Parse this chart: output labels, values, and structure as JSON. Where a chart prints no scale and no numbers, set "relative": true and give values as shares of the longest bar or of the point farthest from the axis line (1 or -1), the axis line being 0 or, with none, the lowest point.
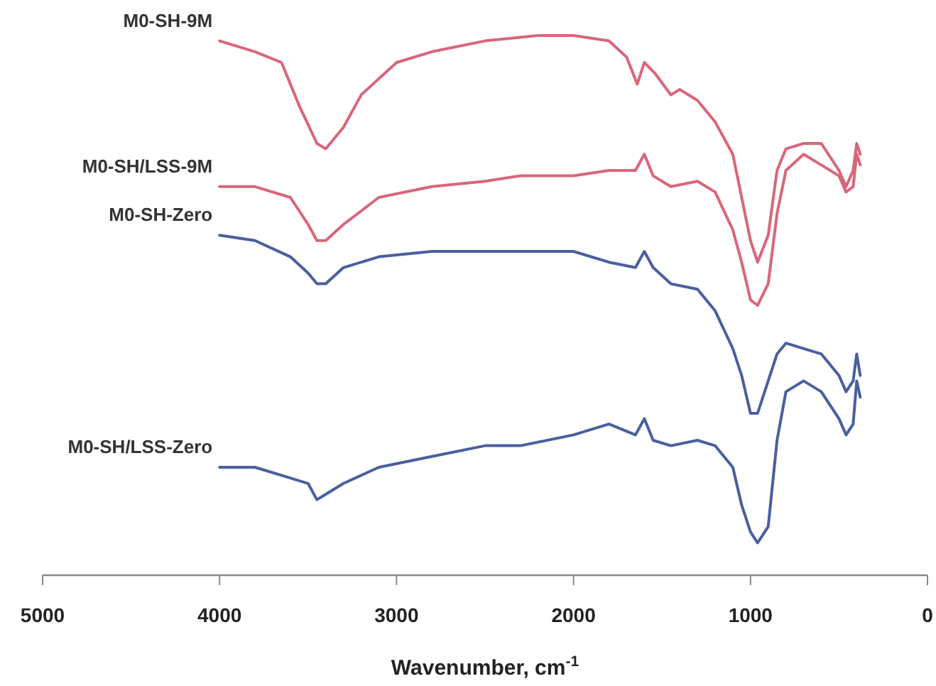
{
  "chart_data": {
    "type": "line",
    "relative": true,
    "xlabel": "Wavenumber, cm$^{-1}$",
    "xlim": [
      5000,
      0
    ],
    "xticks": [
      5000,
      4000,
      3000,
      2000,
      1000,
      0
    ],
    "legend": false,
    "grid": false,
    "marker": "none",
    "line_style": "solid",
    "series": [
      {
        "name": "M0-SH-9M",
        "color": "#d9667a",
        "x": [
          4000,
          3800,
          3650,
          3550,
          3450,
          3400,
          3300,
          3200,
          3000,
          2800,
          2500,
          2200,
          2000,
          1800,
          1700,
          1640,
          1600,
          1540,
          1450,
          1400,
          1300,
          1200,
          1100,
          1050,
          1000,
          960,
          900,
          850,
          800,
          700,
          600,
          500,
          460,
          420,
          400,
          380
        ],
        "values": [
          0.99,
          0.97,
          0.95,
          0.87,
          0.8,
          0.79,
          0.83,
          0.89,
          0.95,
          0.97,
          0.99,
          1,
          1,
          0.99,
          0.96,
          0.91,
          0.95,
          0.93,
          0.89,
          0.9,
          0.88,
          0.84,
          0.78,
          0.7,
          0.62,
          0.58,
          0.63,
          0.75,
          0.79,
          0.8,
          0.8,
          0.75,
          0.72,
          0.75,
          0.8,
          0.78
        ]
      },
      {
        "name": "M0-SH/LSS-9M",
        "color": "#d9667a",
        "x": [
          4000,
          3800,
          3600,
          3500,
          3450,
          3400,
          3300,
          3100,
          2800,
          2500,
          2300,
          2000,
          1800,
          1650,
          1600,
          1550,
          1450,
          1300,
          1200,
          1100,
          1050,
          1000,
          960,
          900,
          850,
          800,
          700,
          600,
          500,
          460,
          420,
          400,
          380
        ],
        "values": [
          0.72,
          0.72,
          0.7,
          0.65,
          0.62,
          0.62,
          0.65,
          0.7,
          0.72,
          0.73,
          0.74,
          0.74,
          0.75,
          0.75,
          0.78,
          0.74,
          0.72,
          0.73,
          0.71,
          0.64,
          0.58,
          0.51,
          0.5,
          0.54,
          0.67,
          0.75,
          0.78,
          0.76,
          0.74,
          0.71,
          0.72,
          0.78,
          0.76
        ]
      },
      {
        "name": "M0-SH-Zero",
        "color": "#4a5fa0",
        "x": [
          4000,
          3800,
          3600,
          3500,
          3450,
          3400,
          3300,
          3100,
          2800,
          2500,
          2300,
          2000,
          1800,
          1650,
          1600,
          1550,
          1450,
          1300,
          1200,
          1100,
          1050,
          1000,
          960,
          900,
          850,
          800,
          700,
          600,
          500,
          460,
          420,
          400,
          380
        ],
        "values": [
          0.63,
          0.62,
          0.59,
          0.56,
          0.54,
          0.54,
          0.57,
          0.59,
          0.6,
          0.6,
          0.6,
          0.6,
          0.58,
          0.57,
          0.6,
          0.57,
          0.54,
          0.53,
          0.49,
          0.42,
          0.37,
          0.3,
          0.3,
          0.36,
          0.41,
          0.43,
          0.42,
          0.41,
          0.37,
          0.34,
          0.36,
          0.41,
          0.37
        ]
      },
      {
        "name": "M0-SH/LSS-Zero",
        "color": "#4a5fa0",
        "x": [
          4000,
          3800,
          3600,
          3500,
          3450,
          3400,
          3300,
          3100,
          2800,
          2500,
          2300,
          2000,
          1800,
          1650,
          1600,
          1550,
          1450,
          1300,
          1200,
          1100,
          1050,
          1000,
          960,
          900,
          850,
          800,
          700,
          600,
          500,
          460,
          420,
          400,
          380
        ],
        "values": [
          0.2,
          0.2,
          0.18,
          0.17,
          0.14,
          0.15,
          0.17,
          0.2,
          0.22,
          0.24,
          0.24,
          0.26,
          0.28,
          0.26,
          0.29,
          0.25,
          0.24,
          0.25,
          0.24,
          0.2,
          0.13,
          0.08,
          0.06,
          0.09,
          0.25,
          0.34,
          0.36,
          0.34,
          0.29,
          0.26,
          0.28,
          0.36,
          0.33
        ]
      }
    ]
  }
}
